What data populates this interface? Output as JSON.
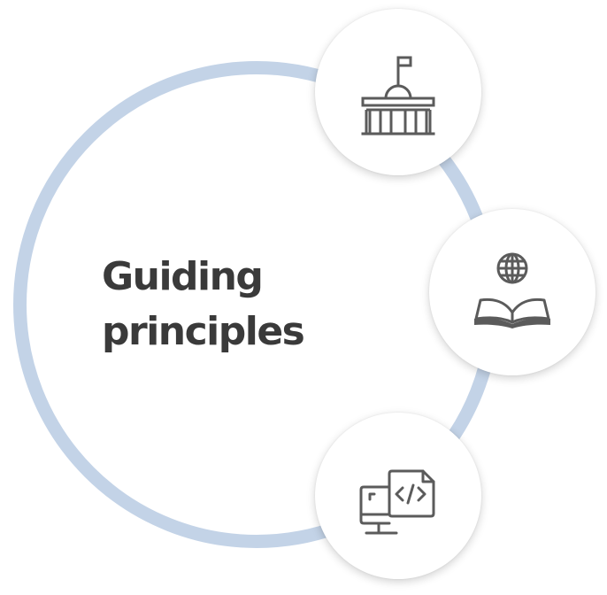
{
  "title": {
    "line1": "Guiding",
    "line2": "principles"
  },
  "colors": {
    "ring": "#c3d3e7",
    "text": "#3a3a3a",
    "icon": "#5b5b5b",
    "badge_background": "#ffffff"
  },
  "principles": [
    {
      "icon": "government-building-icon"
    },
    {
      "icon": "open-book-globe-icon"
    },
    {
      "icon": "code-devices-icon"
    }
  ]
}
